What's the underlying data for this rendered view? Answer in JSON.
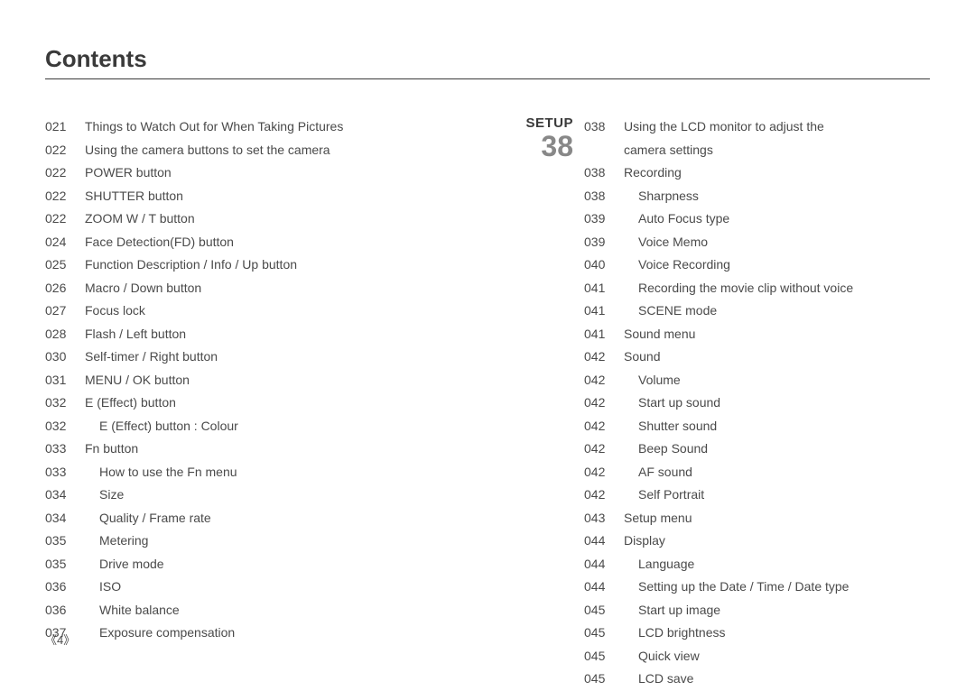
{
  "title": "Contents",
  "pageNumber": "《4》",
  "section": {
    "name": "SETUP",
    "number": "38"
  },
  "left": [
    {
      "p": "021",
      "t": "Things to Watch Out for When Taking Pictures",
      "i": 0
    },
    {
      "p": "022",
      "t": "Using the camera buttons to set the camera",
      "i": 0
    },
    {
      "p": "022",
      "t": "POWER button",
      "i": 0
    },
    {
      "p": "022",
      "t": "SHUTTER button",
      "i": 0
    },
    {
      "p": "022",
      "t": "ZOOM W / T button",
      "i": 0
    },
    {
      "p": "024",
      "t": "Face Detection(FD) button",
      "i": 0
    },
    {
      "p": "025",
      "t": "Function Description / Info / Up button",
      "i": 0
    },
    {
      "p": "026",
      "t": "Macro / Down button",
      "i": 0
    },
    {
      "p": "027",
      "t": "Focus lock",
      "i": 0
    },
    {
      "p": "028",
      "t": "Flash / Left button",
      "i": 0
    },
    {
      "p": "030",
      "t": "Self-timer / Right button",
      "i": 0
    },
    {
      "p": "031",
      "t": "MENU / OK button",
      "i": 0
    },
    {
      "p": "032",
      "t": "E (Effect) button",
      "i": 0
    },
    {
      "p": "032",
      "t": "E (Effect) button : Colour",
      "i": 1
    },
    {
      "p": "033",
      "t": "Fn button",
      "i": 0
    },
    {
      "p": "033",
      "t": "How to use the Fn menu",
      "i": 1
    },
    {
      "p": "034",
      "t": "Size",
      "i": 1
    },
    {
      "p": "034",
      "t": "Quality / Frame rate",
      "i": 1
    },
    {
      "p": "035",
      "t": "Metering",
      "i": 1
    },
    {
      "p": "035",
      "t": "Drive mode",
      "i": 1
    },
    {
      "p": "036",
      "t": "ISO",
      "i": 1
    },
    {
      "p": "036",
      "t": "White balance",
      "i": 1
    },
    {
      "p": "037",
      "t": "Exposure compensation",
      "i": 1
    }
  ],
  "right": [
    {
      "p": "038",
      "t": "Using the LCD monitor to adjust the",
      "i": 0
    },
    {
      "p": "",
      "t": "camera settings",
      "i": 0
    },
    {
      "p": "038",
      "t": "Recording",
      "i": 0
    },
    {
      "p": "038",
      "t": "Sharpness",
      "i": 1
    },
    {
      "p": "039",
      "t": "Auto Focus type",
      "i": 1
    },
    {
      "p": "039",
      "t": "Voice Memo",
      "i": 1
    },
    {
      "p": "040",
      "t": "Voice Recording",
      "i": 1
    },
    {
      "p": "041",
      "t": "Recording the movie clip without voice",
      "i": 1
    },
    {
      "p": "041",
      "t": "SCENE mode",
      "i": 1
    },
    {
      "p": "041",
      "t": "Sound menu",
      "i": 0
    },
    {
      "p": "042",
      "t": "Sound",
      "i": 0
    },
    {
      "p": "042",
      "t": "Volume",
      "i": 1
    },
    {
      "p": "042",
      "t": "Start up sound",
      "i": 1
    },
    {
      "p": "042",
      "t": "Shutter sound",
      "i": 1
    },
    {
      "p": "042",
      "t": "Beep Sound",
      "i": 1
    },
    {
      "p": "042",
      "t": "AF sound",
      "i": 1
    },
    {
      "p": "042",
      "t": "Self Portrait",
      "i": 1
    },
    {
      "p": "043",
      "t": "Setup menu",
      "i": 0
    },
    {
      "p": "044",
      "t": "Display",
      "i": 0
    },
    {
      "p": "044",
      "t": "Language",
      "i": 1
    },
    {
      "p": "044",
      "t": "Setting up the Date / Time / Date type",
      "i": 1
    },
    {
      "p": "045",
      "t": "Start up image",
      "i": 1
    },
    {
      "p": "045",
      "t": "LCD brightness",
      "i": 1
    },
    {
      "p": "045",
      "t": "Quick view",
      "i": 1
    },
    {
      "p": "045",
      "t": "LCD save",
      "i": 1
    }
  ]
}
